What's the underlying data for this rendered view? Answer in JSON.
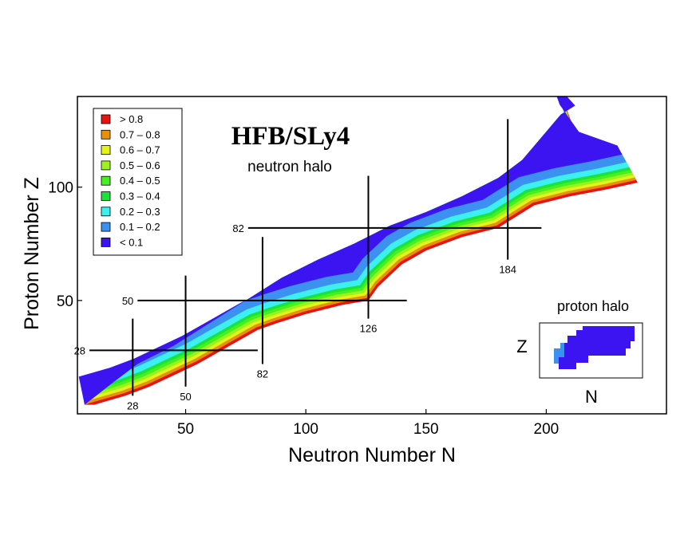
{
  "chart_data": {
    "type": "heatmap",
    "title": "HFB/SLy4",
    "subtitle": "neutron halo",
    "xlabel": "Neutron Number N",
    "ylabel": "Proton Number Z",
    "xlim": [
      5,
      250
    ],
    "ylim": [
      0,
      140
    ],
    "xticks": [
      50,
      100,
      150,
      200
    ],
    "yticks": [
      50,
      100
    ],
    "legend": {
      "placement": "top-left",
      "entries": [
        {
          "label": "> 0.8",
          "color": "#e8130f"
        },
        {
          "label": "0.7 – 0.8",
          "color": "#e8900a"
        },
        {
          "label": "0.6 – 0.7",
          "color": "#e6f218"
        },
        {
          "label": "0.5 – 0.6",
          "color": "#9cf21c"
        },
        {
          "label": "0.4 – 0.5",
          "color": "#46f01c"
        },
        {
          "label": "0.3 – 0.4",
          "color": "#1ce33a"
        },
        {
          "label": "0.2 – 0.3",
          "color": "#3cf0f0"
        },
        {
          "label": "0.1 – 0.2",
          "color": "#3c90f0"
        },
        {
          "label": "< 0.1",
          "color": "#3c14f2"
        }
      ]
    },
    "magic_numbers": {
      "protons": [
        {
          "value": 28,
          "label": "28",
          "n_range": [
            10,
            80
          ]
        },
        {
          "value": 50,
          "label": "50",
          "n_range": [
            30,
            142
          ]
        },
        {
          "value": 82,
          "label": "82",
          "n_range": [
            76,
            198
          ]
        }
      ],
      "neutrons": [
        {
          "value": 28,
          "label": "28",
          "z_range": [
            8,
            42
          ]
        },
        {
          "value": 50,
          "label": "50",
          "z_range": [
            12,
            61
          ]
        },
        {
          "value": 82,
          "label": "82",
          "z_range": [
            22,
            78
          ]
        },
        {
          "value": 126,
          "label": "126",
          "z_range": [
            42,
            105
          ]
        },
        {
          "value": 184,
          "label": "184",
          "z_range": [
            68,
            130
          ]
        }
      ]
    },
    "nuclide_region": {
      "proton_drip_line": [
        [
          8,
          4
        ],
        [
          20,
          14
        ],
        [
          30,
          22
        ],
        [
          45,
          30
        ],
        [
          60,
          40
        ],
        [
          75,
          50
        ],
        [
          90,
          60
        ],
        [
          105,
          68
        ],
        [
          120,
          75
        ],
        [
          135,
          83
        ],
        [
          150,
          89
        ],
        [
          165,
          96
        ],
        [
          180,
          104
        ],
        [
          190,
          112
        ],
        [
          198,
          122
        ],
        [
          206,
          132
        ],
        [
          212,
          136
        ]
      ],
      "neutron_drip_line": [
        [
          12,
          4
        ],
        [
          25,
          8
        ],
        [
          35,
          12
        ],
        [
          45,
          17
        ],
        [
          55,
          22
        ],
        [
          65,
          28
        ],
        [
          75,
          34
        ],
        [
          80,
          37
        ],
        [
          88,
          40
        ],
        [
          100,
          44
        ],
        [
          115,
          48
        ],
        [
          126,
          50
        ],
        [
          130,
          56
        ],
        [
          140,
          66
        ],
        [
          150,
          72
        ],
        [
          165,
          78
        ],
        [
          180,
          82
        ],
        [
          186,
          86
        ],
        [
          195,
          92
        ],
        [
          210,
          96
        ],
        [
          225,
          99
        ],
        [
          238,
          102
        ],
        [
          236,
          106
        ],
        [
          220,
          112
        ],
        [
          212,
          124
        ],
        [
          208,
          136
        ]
      ],
      "band_depths": [
        2,
        4,
        6,
        8,
        10,
        12,
        16,
        22
      ],
      "band_colors": [
        "#e8130f",
        "#e8900a",
        "#e6f218",
        "#9cf21c",
        "#46f01c",
        "#1ce33a",
        "#3cf0f0",
        "#3c90f0"
      ],
      "core_color": "#3c14f2"
    },
    "inset": {
      "title": "proton halo",
      "xlabel": "N",
      "ylabel": "Z"
    }
  }
}
